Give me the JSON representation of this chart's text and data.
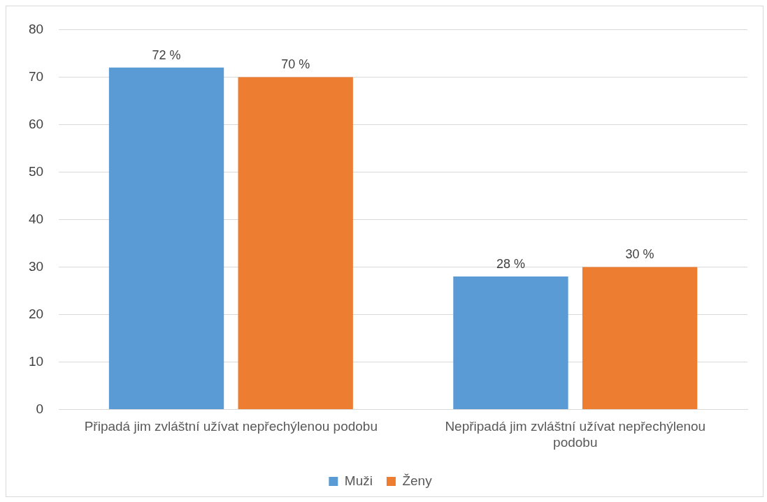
{
  "chart_data": {
    "type": "bar",
    "categories": [
      "Připadá jim zvláštní užívat nepřechýlenou podobu",
      "Nepřipadá jim zvláštní užívat nepřechýlenou podobu"
    ],
    "series": [
      {
        "name": "Muži",
        "color": "#5b9bd5",
        "values": [
          72,
          28
        ],
        "value_labels": [
          "72 %",
          "28 %"
        ]
      },
      {
        "name": "Ženy",
        "color": "#ed7d31",
        "values": [
          70,
          30
        ],
        "value_labels": [
          "70 %",
          "30 %"
        ]
      }
    ],
    "ylim": [
      0,
      80
    ],
    "yticks": [
      0,
      10,
      20,
      30,
      40,
      50,
      60,
      70,
      80
    ],
    "grid": "y",
    "legend": "bottom"
  }
}
